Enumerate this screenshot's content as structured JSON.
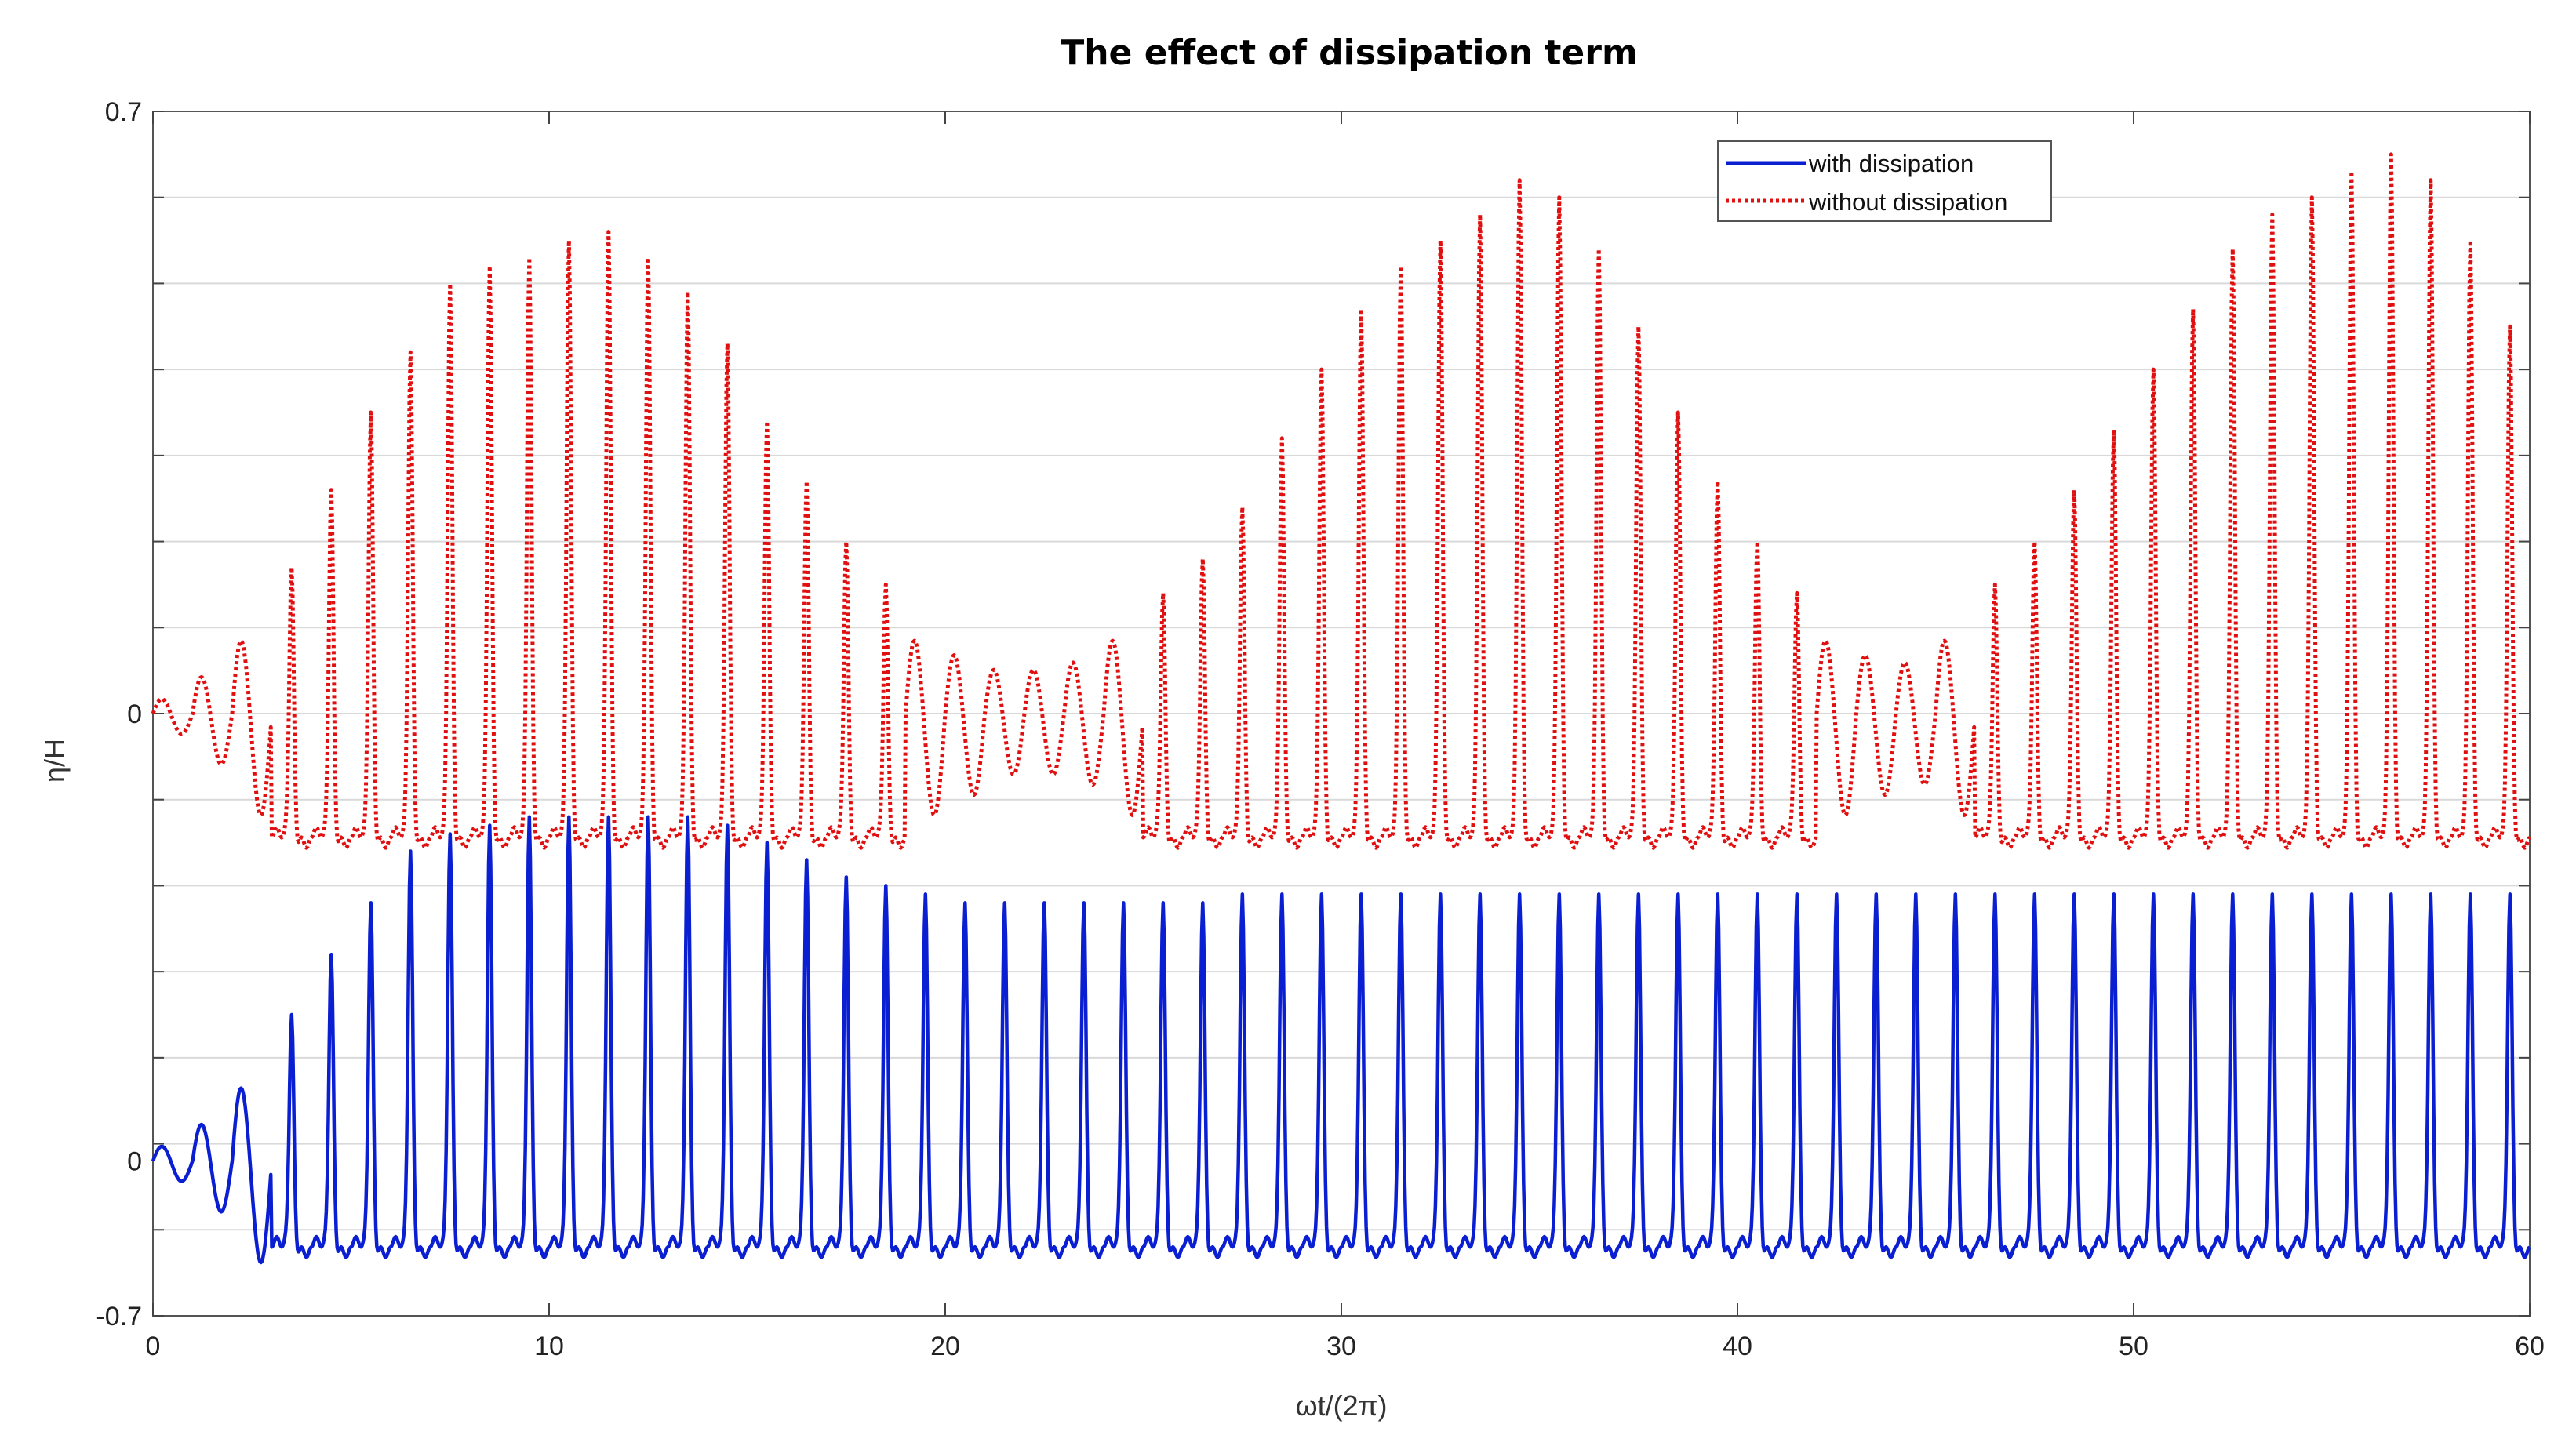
{
  "chart_data": {
    "type": "line",
    "title": "The effect of dissipation term",
    "xlabel": "ωt/(2π)",
    "ylabel": "η/H",
    "xlim": [
      0,
      60
    ],
    "ylim": [
      -0.7,
      0.7
    ],
    "xticks": [
      0,
      10,
      20,
      30,
      40,
      50,
      60
    ],
    "xtick_labels": [
      "0",
      "10",
      "20",
      "30",
      "40",
      "50",
      "60"
    ],
    "ytick_labels_left": [
      "0.7",
      "0",
      "0",
      "-0.7"
    ],
    "grid": true,
    "legend_position": "top-right",
    "series": [
      {
        "name": "with dissipation",
        "color": "#0a1ed2",
        "style": "solid",
        "baseline": -0.7,
        "growth_periods": 7,
        "steady_crest": 0.3,
        "trough": -0.1,
        "crests": [
          0.02,
          0.05,
          0.1,
          0.17,
          0.24,
          0.3,
          0.36,
          0.38,
          0.39,
          0.4,
          0.4,
          0.4,
          0.4,
          0.4,
          0.39,
          0.37,
          0.35,
          0.33,
          0.32,
          0.31,
          0.3,
          0.3,
          0.3,
          0.3,
          0.3,
          0.3,
          0.3,
          0.31,
          0.31,
          0.31,
          0.31,
          0.31,
          0.31,
          0.31,
          0.31,
          0.31,
          0.31,
          0.31,
          0.31,
          0.31,
          0.31,
          0.31,
          0.31,
          0.31,
          0.31,
          0.31,
          0.31,
          0.31,
          0.31,
          0.31,
          0.31,
          0.31,
          0.31,
          0.31,
          0.31,
          0.31,
          0.31,
          0.31,
          0.31,
          0.31
        ]
      },
      {
        "name": "without dissipation",
        "color": "#e01010",
        "style": "dotted",
        "baseline": 0.0,
        "crests": [
          0.02,
          0.05,
          0.1,
          0.17,
          0.26,
          0.35,
          0.42,
          0.5,
          0.52,
          0.53,
          0.55,
          0.56,
          0.53,
          0.49,
          0.43,
          0.34,
          0.27,
          0.2,
          0.15,
          0.1,
          0.08,
          0.06,
          0.06,
          0.07,
          0.1,
          0.14,
          0.18,
          0.24,
          0.32,
          0.4,
          0.47,
          0.52,
          0.55,
          0.58,
          0.62,
          0.6,
          0.54,
          0.45,
          0.35,
          0.27,
          0.2,
          0.14,
          0.1,
          0.08,
          0.07,
          0.1,
          0.15,
          0.2,
          0.26,
          0.33,
          0.4,
          0.47,
          0.54,
          0.58,
          0.6,
          0.63,
          0.65,
          0.62,
          0.55,
          0.45
        ],
        "troughs_min": -0.18
      }
    ]
  }
}
